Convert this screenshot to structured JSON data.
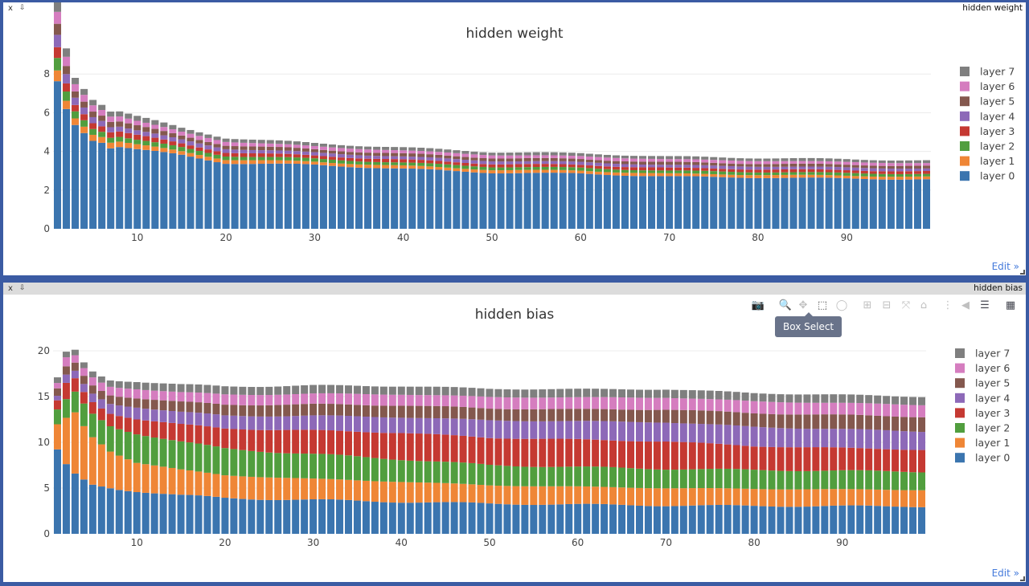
{
  "colors": [
    "#3b75af",
    "#ef8636",
    "#519e3e",
    "#c53932",
    "#8d69b8",
    "#84584e",
    "#d57dbf",
    "#7f7f7f"
  ],
  "panels": [
    {
      "panel_title": "hidden weight",
      "close_label": "x",
      "pin_label": "⇩",
      "edit_label": "Edit »"
    },
    {
      "panel_title": "hidden bias",
      "close_label": "x",
      "pin_label": "⇩",
      "edit_label": "Edit »",
      "modebar": [
        "camera-icon",
        "zoom-icon",
        "pan-icon",
        "box-select-icon",
        "lasso-icon",
        "zoom-in-icon",
        "zoom-out-icon",
        "autoscale-icon",
        "reset-axes-icon",
        "spike-lines-icon",
        "hover-closest-icon",
        "hover-compare-icon",
        "plotly-logo-icon"
      ],
      "tooltip": "Box Select"
    }
  ],
  "chart_data": [
    {
      "type": "bar",
      "barmode": "stack",
      "title": "hidden weight",
      "xlabel": "",
      "ylabel": "",
      "xlim": [
        0.5,
        99.5
      ],
      "ylim": [
        0,
        8.3
      ],
      "xticks": [
        10,
        20,
        30,
        40,
        50,
        60,
        70,
        80,
        90
      ],
      "yticks": [
        0,
        2,
        4,
        6,
        8
      ],
      "legend_position": "right",
      "series_names": [
        "layer 0",
        "layer 1",
        "layer 2",
        "layer 3",
        "layer 4",
        "layer 5",
        "layer 6",
        "layer 7"
      ],
      "x_range": [
        1,
        99
      ],
      "layer0_anchors": [
        [
          1,
          7.6
        ],
        [
          2,
          6.2
        ],
        [
          3,
          5.4
        ],
        [
          4,
          5.0
        ],
        [
          5,
          4.6
        ],
        [
          6,
          4.5
        ],
        [
          7,
          4.2
        ],
        [
          8,
          4.25
        ],
        [
          10,
          4.1
        ],
        [
          15,
          3.8
        ],
        [
          20,
          3.4
        ],
        [
          30,
          3.3
        ],
        [
          40,
          3.1
        ],
        [
          50,
          2.9
        ],
        [
          60,
          2.85
        ],
        [
          70,
          2.7
        ],
        [
          80,
          2.65
        ],
        [
          90,
          2.6
        ],
        [
          99,
          2.55
        ]
      ],
      "upper_layer_anchors": [
        [
          1,
          0.6
        ],
        [
          2,
          0.45
        ],
        [
          3,
          0.35
        ],
        [
          6,
          0.28
        ],
        [
          15,
          0.2
        ],
        [
          30,
          0.16
        ],
        [
          60,
          0.15
        ],
        [
          99,
          0.14
        ]
      ]
    },
    {
      "type": "bar",
      "barmode": "stack",
      "title": "hidden bias",
      "xlabel": "",
      "ylabel": "",
      "xlim": [
        0.5,
        99.5
      ],
      "ylim": [
        0,
        20
      ],
      "xticks": [
        10,
        20,
        30,
        40,
        50,
        60,
        70,
        80,
        90
      ],
      "yticks": [
        0,
        5,
        10,
        15,
        20
      ],
      "legend_position": "right",
      "series_names": [
        "layer 0",
        "layer 1",
        "layer 2",
        "layer 3",
        "layer 4",
        "layer 5",
        "layer 6",
        "layer 7"
      ],
      "x_range": [
        1,
        99
      ],
      "layer_anchors": [
        [
          [
            1,
            9.0
          ],
          [
            2,
            7.4
          ],
          [
            3,
            6.4
          ],
          [
            4,
            5.8
          ],
          [
            5,
            5.3
          ],
          [
            8,
            4.9
          ],
          [
            10,
            4.7
          ],
          [
            15,
            4.2
          ],
          [
            20,
            3.9
          ],
          [
            30,
            3.7
          ],
          [
            40,
            3.5
          ],
          [
            50,
            3.3
          ],
          [
            60,
            3.2
          ],
          [
            70,
            3.1
          ],
          [
            80,
            3.05
          ],
          [
            99,
            3.0
          ]
        ],
        [
          [
            1,
            2.8
          ],
          [
            2,
            5.2
          ],
          [
            3,
            6.9
          ],
          [
            4,
            6.0
          ],
          [
            5,
            5.3
          ],
          [
            7,
            4.0
          ],
          [
            10,
            3.1
          ],
          [
            15,
            2.8
          ],
          [
            20,
            2.5
          ],
          [
            30,
            2.3
          ],
          [
            40,
            2.2
          ],
          [
            50,
            2.0
          ],
          [
            70,
            1.9
          ],
          [
            99,
            1.8
          ]
        ],
        [
          [
            1,
            1.6
          ],
          [
            2,
            2.0
          ],
          [
            3,
            2.2
          ],
          [
            4,
            2.4
          ],
          [
            6,
            2.6
          ],
          [
            10,
            3.2
          ],
          [
            20,
            2.9
          ],
          [
            30,
            2.7
          ],
          [
            50,
            2.2
          ],
          [
            70,
            2.1
          ],
          [
            99,
            2.0
          ]
        ],
        [
          [
            1,
            1.0
          ],
          [
            2,
            1.8
          ],
          [
            3,
            1.5
          ],
          [
            4,
            1.3
          ],
          [
            6,
            1.3
          ],
          [
            10,
            1.6
          ],
          [
            20,
            2.2
          ],
          [
            30,
            2.6
          ],
          [
            40,
            2.9
          ],
          [
            50,
            3.0
          ],
          [
            60,
            3.0
          ],
          [
            70,
            3.0
          ],
          [
            80,
            2.6
          ],
          [
            99,
            2.4
          ]
        ],
        [
          [
            1,
            0.5
          ],
          [
            2,
            0.9
          ],
          [
            3,
            0.8
          ],
          [
            5,
            0.9
          ],
          [
            10,
            1.3
          ],
          [
            20,
            1.4
          ],
          [
            30,
            1.6
          ],
          [
            40,
            1.7
          ],
          [
            50,
            1.9
          ],
          [
            60,
            2.0
          ],
          [
            70,
            2.1
          ],
          [
            80,
            2.1
          ],
          [
            99,
            2.0
          ]
        ],
        [
          [
            1,
            0.8
          ],
          [
            2,
            0.9
          ],
          [
            3,
            0.9
          ],
          [
            10,
            1.0
          ],
          [
            20,
            1.2
          ],
          [
            40,
            1.3
          ],
          [
            60,
            1.3
          ],
          [
            80,
            1.5
          ],
          [
            99,
            1.6
          ]
        ],
        [
          [
            1,
            0.6
          ],
          [
            2,
            1.0
          ],
          [
            3,
            0.8
          ],
          [
            10,
            1.0
          ],
          [
            20,
            1.1
          ],
          [
            40,
            1.2
          ],
          [
            60,
            1.3
          ],
          [
            99,
            1.3
          ]
        ],
        [
          [
            1,
            0.6
          ],
          [
            2,
            0.6
          ],
          [
            3,
            0.6
          ],
          [
            10,
            0.8
          ],
          [
            20,
            0.9
          ],
          [
            40,
            0.9
          ],
          [
            60,
            0.9
          ],
          [
            99,
            0.9
          ]
        ]
      ]
    }
  ]
}
